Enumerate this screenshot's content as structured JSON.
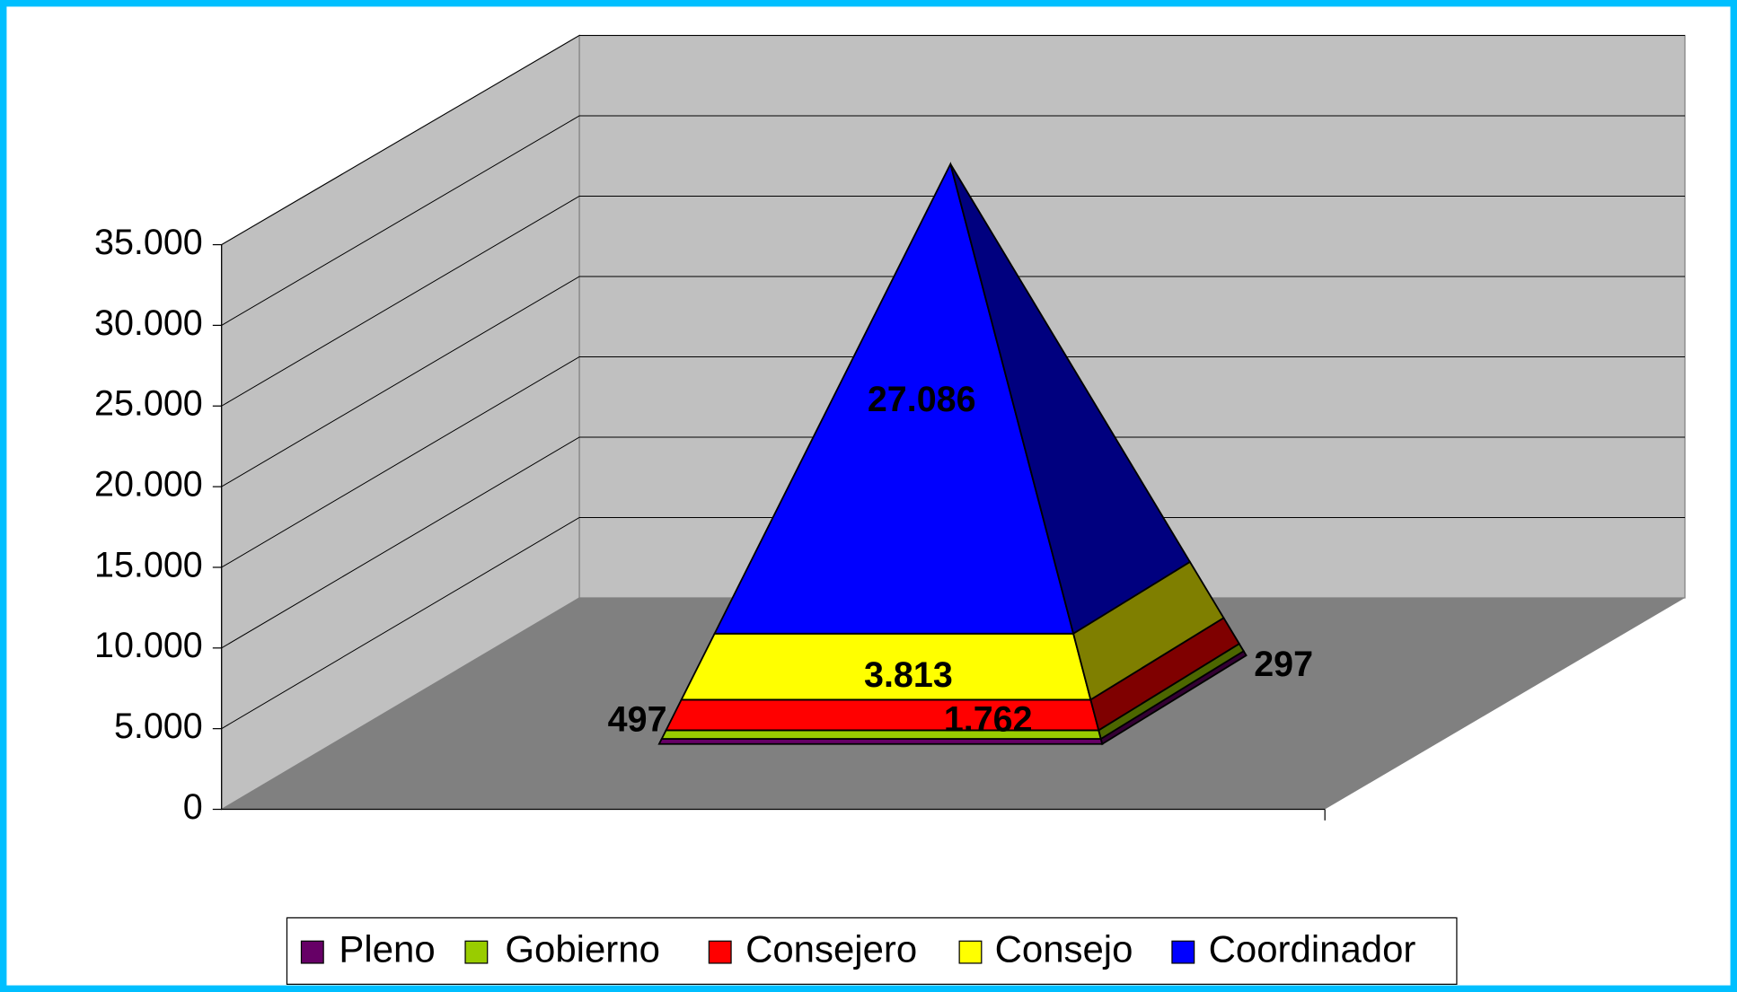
{
  "chart_data": {
    "type": "pyramid3d",
    "series": [
      {
        "name": "Pleno",
        "color": "#660066",
        "values": [
          297
        ]
      },
      {
        "name": "Gobierno",
        "color": "#99cc00",
        "values": [
          497
        ]
      },
      {
        "name": "Consejero",
        "color": "#ff0000",
        "values": [
          1762
        ],
        "value_labels": [
          "1.762"
        ]
      },
      {
        "name": "Consejo",
        "color": "#ffff00",
        "values": [
          3813
        ],
        "value_labels": [
          "3.813"
        ]
      },
      {
        "name": "Coordinador",
        "color": "#0000ff",
        "values": [
          27086
        ],
        "value_labels": [
          "27.086"
        ]
      }
    ],
    "ylim": [
      0,
      35000
    ],
    "yticks": [
      0,
      {
        "value": 5000,
        "label": "5.000"
      },
      {
        "value": 10000,
        "label": "10.000"
      },
      {
        "value": 15000,
        "label": "15.000"
      },
      {
        "value": 20000,
        "label": "20.000"
      },
      {
        "value": 25000,
        "label": "25.000"
      },
      {
        "value": 30000,
        "label": "30.000"
      },
      {
        "value": 35000,
        "label": "35.000"
      }
    ],
    "grid": true,
    "legend": "bottom"
  }
}
